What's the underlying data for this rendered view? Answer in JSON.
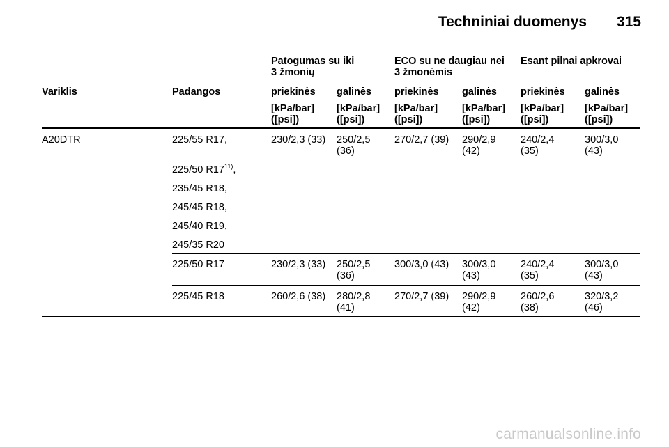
{
  "header": {
    "title": "Techniniai duomenys",
    "page_number": "315"
  },
  "table": {
    "group_headers": {
      "comfort": [
        "Patogumas su iki",
        "3 žmonių"
      ],
      "eco": [
        "ECO su ne daugiau nei",
        "3 žmonėmis"
      ],
      "full": [
        "Esant pilnai apkrovai"
      ]
    },
    "column_headers": {
      "engine": "Variklis",
      "tyres": "Padangos",
      "comfort_front": "priekinės",
      "comfort_rear": "galinės",
      "eco_front": "priekinės",
      "eco_rear": "galinės",
      "full_front": "priekinės",
      "full_rear": "galinės"
    },
    "unit_line1": "[kPa/bar]",
    "unit_line2": "([psi])",
    "engine": "A20DTR",
    "tyre_group1": [
      "225/55 R17,",
      "225/50 R17",
      "235/45 R18,",
      "245/45 R18,",
      "245/40 R19,",
      "245/35 R20"
    ],
    "tyre_group1_footnote": "11)",
    "tyre_group1_footnote_comma": ",",
    "rows": [
      {
        "tyres": "",
        "comfort_front": "230/2,3 (33)",
        "comfort_rear": [
          "250/2,5",
          "(36)"
        ],
        "eco_front": "270/2,7 (39)",
        "eco_rear": [
          "290/2,9",
          "(42)"
        ],
        "full_front": [
          "240/2,4",
          "(35)"
        ],
        "full_rear": [
          "300/3,0",
          "(43)"
        ]
      },
      {
        "tyres": "225/50 R17",
        "comfort_front": "230/2,3 (33)",
        "comfort_rear": [
          "250/2,5",
          "(36)"
        ],
        "eco_front": "300/3,0 (43)",
        "eco_rear": [
          "300/3,0",
          "(43)"
        ],
        "full_front": [
          "240/2,4",
          "(35)"
        ],
        "full_rear": [
          "300/3,0",
          "(43)"
        ]
      },
      {
        "tyres": "225/45 R18",
        "comfort_front": "260/2,6 (38)",
        "comfort_rear": [
          "280/2,8",
          "(41)"
        ],
        "eco_front": "270/2,7 (39)",
        "eco_rear": [
          "290/2,9",
          "(42)"
        ],
        "full_front": [
          "260/2,6",
          "(38)"
        ],
        "full_rear": [
          "320/3,2",
          "(46)"
        ]
      }
    ]
  },
  "watermark": "carmanualsonline.info"
}
